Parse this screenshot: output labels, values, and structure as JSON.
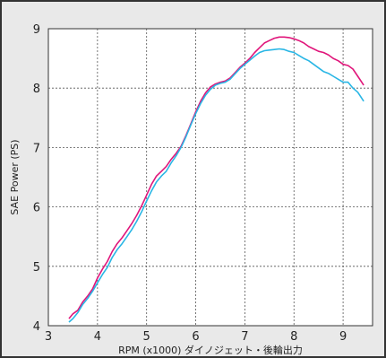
{
  "chart_data": {
    "type": "line",
    "title": "",
    "xlabel": "RPM (x1000) ダイノジェット・後輪出力",
    "ylabel": "SAE Power (PS)",
    "xlim": [
      3,
      9.6
    ],
    "ylim": [
      4,
      9
    ],
    "xticks": [
      3,
      4,
      5,
      6,
      7,
      8,
      9
    ],
    "yticks": [
      4,
      5,
      6,
      7,
      8,
      9
    ],
    "grid": true,
    "colors": {
      "plot_bg": "#ffffff",
      "frame_bg": "#e9e9e9",
      "grid": "#555555"
    },
    "series": [
      {
        "color": "#e0157a",
        "x": [
          3.42,
          3.5,
          3.6,
          3.7,
          3.8,
          3.9,
          4.0,
          4.1,
          4.2,
          4.3,
          4.4,
          4.5,
          4.6,
          4.7,
          4.8,
          4.9,
          5.0,
          5.1,
          5.2,
          5.3,
          5.4,
          5.5,
          5.6,
          5.7,
          5.8,
          5.9,
          6.0,
          6.1,
          6.2,
          6.3,
          6.4,
          6.5,
          6.6,
          6.7,
          6.8,
          6.9,
          7.0,
          7.1,
          7.2,
          7.3,
          7.4,
          7.5,
          7.6,
          7.7,
          7.8,
          7.9,
          8.0,
          8.1,
          8.2,
          8.3,
          8.4,
          8.5,
          8.6,
          8.7,
          8.8,
          8.9,
          9.0,
          9.1,
          9.2,
          9.3,
          9.42
        ],
        "y": [
          4.12,
          4.2,
          4.26,
          4.4,
          4.5,
          4.62,
          4.8,
          4.95,
          5.08,
          5.25,
          5.38,
          5.48,
          5.6,
          5.72,
          5.86,
          6.02,
          6.2,
          6.38,
          6.52,
          6.6,
          6.68,
          6.8,
          6.9,
          7.02,
          7.2,
          7.4,
          7.6,
          7.78,
          7.92,
          8.02,
          8.07,
          8.1,
          8.12,
          8.17,
          8.26,
          8.35,
          8.42,
          8.5,
          8.6,
          8.68,
          8.76,
          8.8,
          8.84,
          8.86,
          8.86,
          8.85,
          8.83,
          8.8,
          8.76,
          8.7,
          8.66,
          8.62,
          8.6,
          8.56,
          8.5,
          8.46,
          8.4,
          8.38,
          8.32,
          8.2,
          8.05
        ]
      },
      {
        "color": "#29b6e5",
        "x": [
          3.42,
          3.5,
          3.6,
          3.7,
          3.8,
          3.9,
          4.0,
          4.1,
          4.2,
          4.3,
          4.4,
          4.5,
          4.6,
          4.7,
          4.8,
          4.9,
          5.0,
          5.1,
          5.2,
          5.3,
          5.4,
          5.5,
          5.6,
          5.7,
          5.8,
          5.9,
          6.0,
          6.1,
          6.2,
          6.3,
          6.4,
          6.5,
          6.6,
          6.7,
          6.8,
          6.9,
          7.0,
          7.1,
          7.2,
          7.3,
          7.4,
          7.5,
          7.6,
          7.7,
          7.8,
          7.9,
          8.0,
          8.1,
          8.2,
          8.3,
          8.4,
          8.5,
          8.6,
          8.7,
          8.8,
          8.9,
          9.0,
          9.1,
          9.2,
          9.3,
          9.42
        ],
        "y": [
          4.06,
          4.12,
          4.22,
          4.36,
          4.46,
          4.58,
          4.72,
          4.86,
          4.98,
          5.15,
          5.28,
          5.38,
          5.5,
          5.62,
          5.76,
          5.92,
          6.1,
          6.27,
          6.42,
          6.52,
          6.6,
          6.74,
          6.86,
          7.0,
          7.18,
          7.38,
          7.57,
          7.74,
          7.88,
          7.98,
          8.05,
          8.08,
          8.1,
          8.15,
          8.24,
          8.33,
          8.4,
          8.47,
          8.54,
          8.6,
          8.63,
          8.64,
          8.65,
          8.66,
          8.65,
          8.62,
          8.6,
          8.55,
          8.5,
          8.46,
          8.4,
          8.34,
          8.28,
          8.25,
          8.2,
          8.15,
          8.1,
          8.1,
          8.0,
          7.93,
          7.78
        ]
      }
    ]
  }
}
